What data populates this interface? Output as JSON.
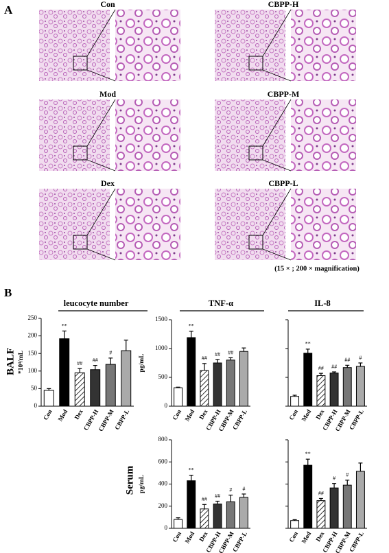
{
  "panel_a": {
    "label": "A",
    "images": [
      {
        "label": "Con"
      },
      {
        "label": "CBPP-H"
      },
      {
        "label": "Mod"
      },
      {
        "label": "CBPP-M"
      },
      {
        "label": "Dex"
      },
      {
        "label": "CBPP-L"
      }
    ],
    "caption": "(15 × ; 200 × magnification)"
  },
  "panel_b": {
    "label": "B",
    "column_titles": [
      "leucocyte number",
      "TNF-α",
      "IL-8"
    ],
    "row_labels": [
      "BALF",
      "Serum"
    ]
  },
  "chart_data": [
    {
      "type": "bar",
      "y_label": "*10⁴/mL",
      "categories": [
        "Con",
        "Mod",
        "Dex",
        "CBPP-H",
        "CBPP-M",
        "CBPP-L"
      ],
      "values": [
        45,
        192,
        95,
        104,
        119,
        158
      ],
      "errors": [
        5,
        22,
        12,
        12,
        18,
        30
      ],
      "annotations": [
        null,
        "**",
        "##",
        "##",
        "#",
        null
      ],
      "bar_fills": [
        "#ffffff",
        "#000000",
        "#ffffff",
        "#333333",
        "#777777",
        "#aaaaaa"
      ],
      "hatched": [
        false,
        false,
        true,
        false,
        false,
        false
      ],
      "ylim": [
        0,
        250
      ],
      "yticks": [
        0,
        50,
        100,
        150,
        200,
        250
      ],
      "ytick_labels": true
    },
    {
      "type": "bar",
      "y_label": "pg/mL",
      "categories": [
        "Con",
        "Mod",
        "Dex",
        "CBPP-H",
        "CBPP-M",
        "CBPP-L"
      ],
      "values": [
        320,
        1190,
        620,
        750,
        800,
        950
      ],
      "errors": [
        10,
        110,
        120,
        60,
        40,
        60
      ],
      "annotations": [
        null,
        "**",
        "##",
        "##",
        "##",
        null
      ],
      "bar_fills": [
        "#ffffff",
        "#000000",
        "#ffffff",
        "#333333",
        "#777777",
        "#aaaaaa"
      ],
      "hatched": [
        false,
        false,
        true,
        false,
        false,
        false
      ],
      "ylim": [
        0,
        1500
      ],
      "yticks": [
        0,
        500,
        1000,
        1500
      ],
      "ytick_labels": true
    },
    {
      "type": "bar",
      "categories": [
        "Con",
        "Mod",
        "Dex",
        "CBPP-H",
        "CBPP-M",
        "CBPP-L"
      ],
      "values": [
        170,
        920,
        530,
        575,
        670,
        690
      ],
      "errors": [
        20,
        70,
        40,
        20,
        40,
        60
      ],
      "annotations": [
        null,
        "**",
        "##",
        "##",
        "##",
        "#"
      ],
      "bar_fills": [
        "#ffffff",
        "#000000",
        "#ffffff",
        "#333333",
        "#777777",
        "#aaaaaa"
      ],
      "hatched": [
        false,
        false,
        true,
        false,
        false,
        false
      ],
      "ylim": [
        0,
        1500
      ],
      "yticks": [
        0,
        500,
        1000,
        1500
      ],
      "ytick_labels": false
    },
    {
      "type": "bar",
      "y_label": "pg/mL",
      "categories": [
        "Con",
        "Mod",
        "Dex",
        "CBPP-H",
        "CBPP-M",
        "CBPP-L"
      ],
      "values": [
        80,
        430,
        175,
        220,
        240,
        280
      ],
      "errors": [
        15,
        50,
        40,
        25,
        60,
        30
      ],
      "annotations": [
        null,
        "**",
        "##",
        "##",
        "#",
        "#"
      ],
      "bar_fills": [
        "#ffffff",
        "#000000",
        "#ffffff",
        "#333333",
        "#777777",
        "#aaaaaa"
      ],
      "hatched": [
        false,
        false,
        true,
        false,
        false,
        false
      ],
      "ylim": [
        0,
        800
      ],
      "yticks": [
        0,
        200,
        400,
        600,
        800
      ],
      "ytick_labels": true
    },
    {
      "type": "bar",
      "categories": [
        "Con",
        "Mod",
        "Dex",
        "CBPP-H",
        "CBPP-M",
        "CBPP-L"
      ],
      "values": [
        70,
        570,
        250,
        365,
        390,
        515
      ],
      "errors": [
        8,
        55,
        20,
        40,
        45,
        75
      ],
      "annotations": [
        null,
        "**",
        "##",
        "#",
        "#",
        null
      ],
      "bar_fills": [
        "#ffffff",
        "#000000",
        "#ffffff",
        "#333333",
        "#777777",
        "#aaaaaa"
      ],
      "hatched": [
        false,
        false,
        true,
        false,
        false,
        false
      ],
      "ylim": [
        0,
        800
      ],
      "yticks": [
        0,
        200,
        400,
        600,
        800
      ],
      "ytick_labels": false
    }
  ]
}
